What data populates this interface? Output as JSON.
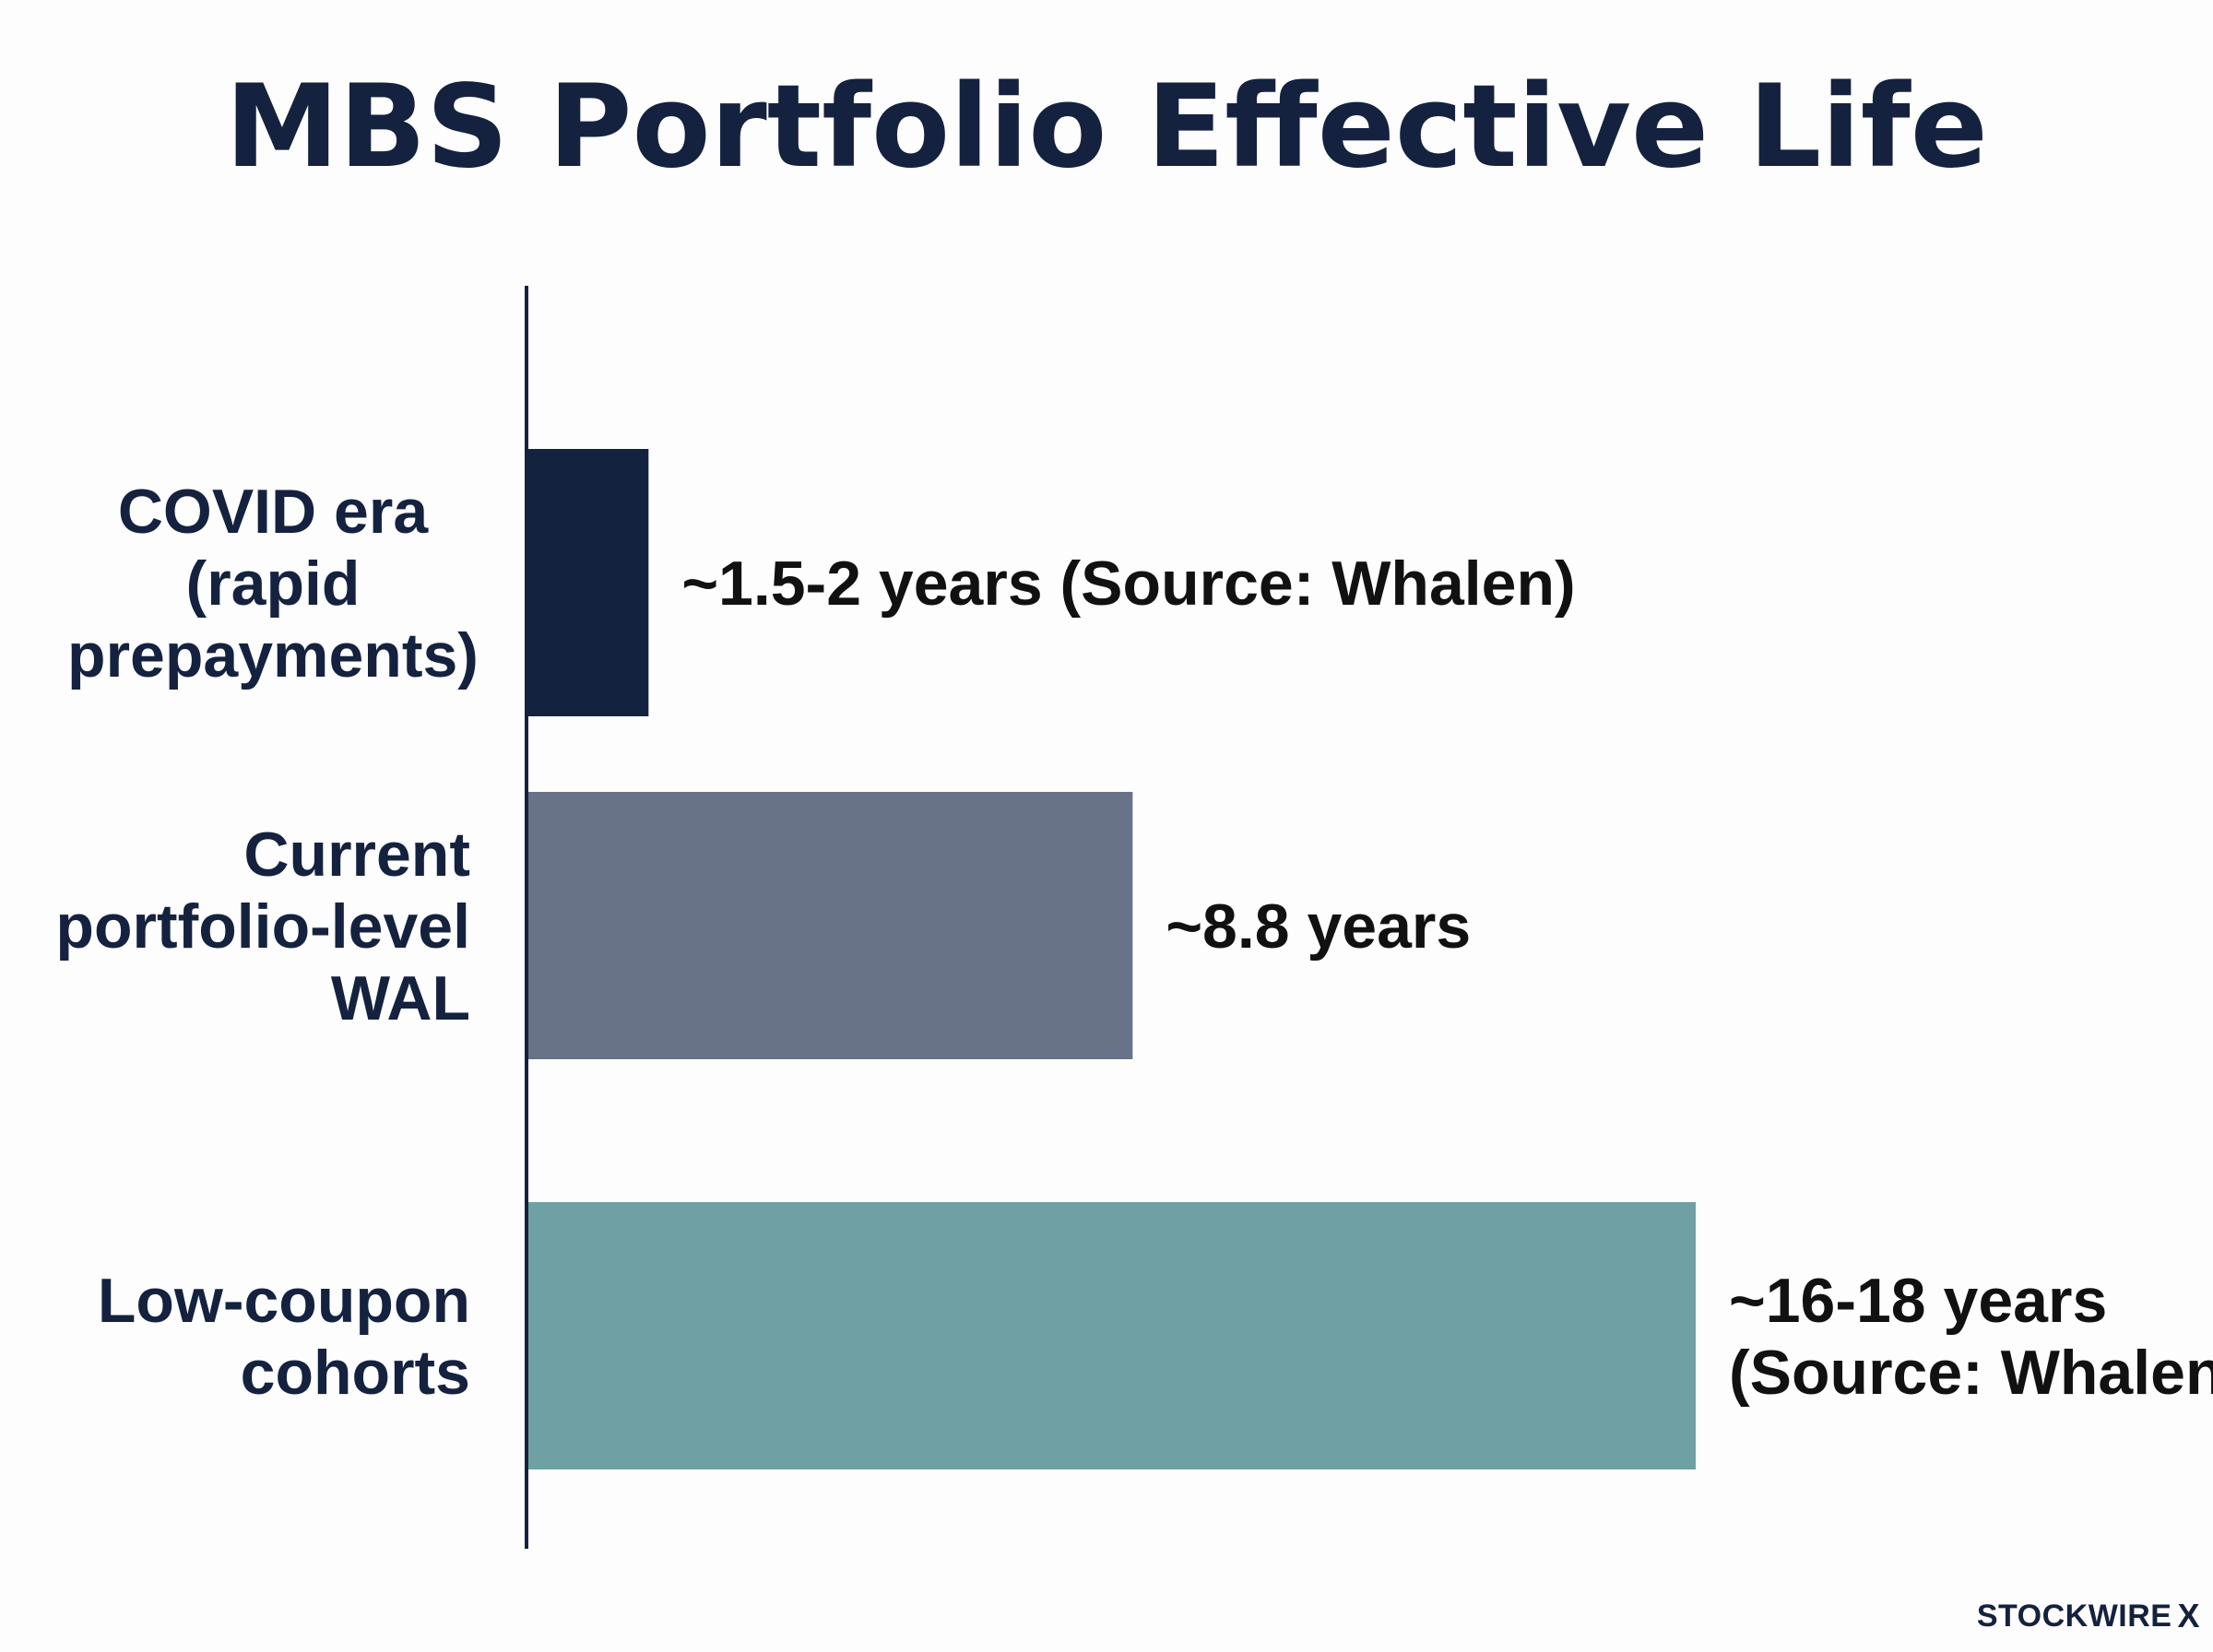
{
  "chart_data": {
    "type": "bar",
    "orientation": "horizontal",
    "title": "MBS Portfolio Effective Life",
    "xlabel": "",
    "ylabel": "",
    "xlim": [
      0,
      20
    ],
    "grid": false,
    "categories": [
      [
        "COVID era",
        "(rapid",
        "prepayments)"
      ],
      [
        "Current",
        "portfolio-level",
        "WAL"
      ],
      [
        "Low-coupon",
        "cohorts"
      ]
    ],
    "values": [
      1.75,
      8.8,
      17
    ],
    "data_labels": [
      [
        "~1.5-2 years (Source: Whalen)"
      ],
      [
        "~8.8 years"
      ],
      [
        "~16-18 years",
        "(Source: Whalen)"
      ]
    ],
    "colors": [
      "#13233f",
      "#687387",
      "#6fa1a4"
    ]
  },
  "branding": {
    "text": "STOCKWIRE",
    "mark": "X",
    "mark_icon": "x-logo-icon"
  }
}
